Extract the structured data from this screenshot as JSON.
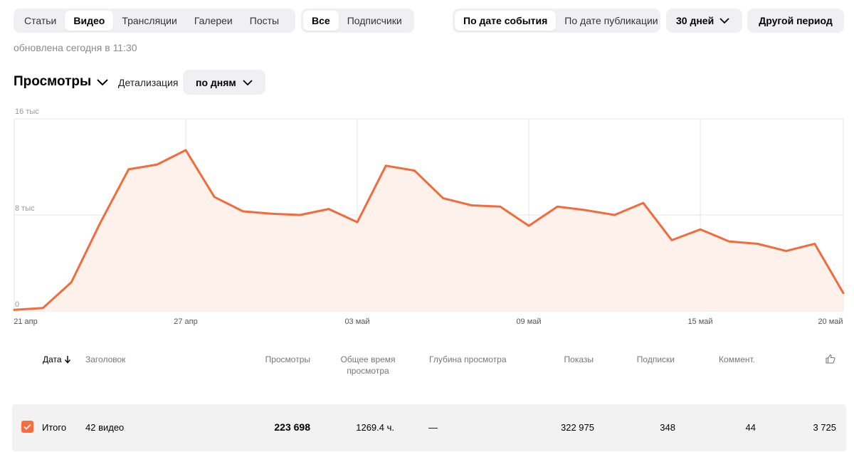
{
  "toolbar": {
    "content_tabs": [
      "Статьи",
      "Видео",
      "Трансляции",
      "Галереи",
      "Посты"
    ],
    "active_content_tab": "Видео",
    "audience_tabs": [
      "Все",
      "Подписчики"
    ],
    "active_audience_tab": "Все",
    "date_mode_tabs": [
      "По дате события",
      "По дате публикации"
    ],
    "active_date_mode_tab": "По дате события",
    "period_label": "30 дней",
    "other_period_label": "Другой период"
  },
  "updated_text": "обновлена сегодня в 11:30",
  "metric": {
    "label": "Просмотры",
    "detail_label": "Детализация",
    "detail_value": "по дням"
  },
  "chart_data": {
    "type": "area",
    "color": "#f26b3a",
    "fill": "#fdf1ec",
    "y_ticks": [
      "16 тыс",
      "8 тыс",
      "0"
    ],
    "ylim": [
      0,
      16000
    ],
    "x_ticks": [
      "21 апр",
      "27 апр",
      "03 май",
      "09 май",
      "15 май",
      "20 май"
    ],
    "x": [
      "21 апр",
      "22 апр",
      "23 апр",
      "24 апр",
      "25 апр",
      "26 апр",
      "27 апр",
      "28 апр",
      "29 апр",
      "30 апр",
      "01 май",
      "02 май",
      "03 май",
      "04 май",
      "05 май",
      "06 май",
      "07 май",
      "08 май",
      "09 май",
      "10 май",
      "11 май",
      "12 май",
      "13 май",
      "14 май",
      "15 май",
      "16 май",
      "17 май",
      "18 май",
      "19 май",
      "20 май"
    ],
    "values": [
      100,
      250,
      2400,
      7300,
      11800,
      12200,
      13400,
      9500,
      8300,
      8100,
      8000,
      8500,
      7400,
      12100,
      11700,
      9400,
      8800,
      8700,
      7100,
      8700,
      8400,
      8000,
      9000,
      5900,
      6800,
      5800,
      5600,
      5000,
      5600,
      1500
    ]
  },
  "table": {
    "headers": {
      "date": "Дата",
      "title": "Заголовок",
      "views": "Просмотры",
      "total_time_1": "Общее время",
      "total_time_2": "просмотра",
      "depth": "Глубина просмотра",
      "impressions": "Показы",
      "subs": "Подписки",
      "comments": "Коммент."
    },
    "total": {
      "label": "Итого",
      "title": "42 видео",
      "views": "223 698",
      "total_time": "1269.4 ч.",
      "depth": "—",
      "impressions": "322 975",
      "subs": "348",
      "comments": "44",
      "likes": "3 725"
    }
  }
}
